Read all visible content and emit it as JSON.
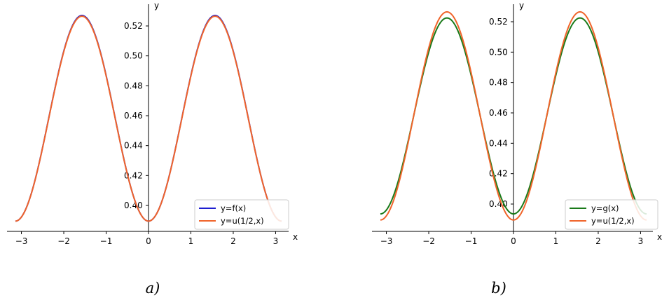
{
  "chart_data": [
    {
      "type": "line",
      "caption": "a)",
      "xlabel": "x",
      "ylabel": "y",
      "xlim": [
        -3.1416,
        3.1416
      ],
      "ylim": [
        0.389,
        0.527
      ],
      "xticks": [
        "−3",
        "−2",
        "−1",
        "0",
        "1",
        "2",
        "3"
      ],
      "yticks": [
        "0.40",
        "0.42",
        "0.44",
        "0.46",
        "0.48",
        "0.50",
        "0.52"
      ],
      "grid": false,
      "legend_position": "lower-right",
      "series": [
        {
          "name": "y=f(x)",
          "color": "#1f1fd0",
          "x": [
            -3.1416,
            -2.618,
            -2.0944,
            -1.5708,
            -1.0472,
            -0.5236,
            0,
            0.5236,
            1.0472,
            1.5708,
            2.0944,
            2.618,
            3.1416
          ],
          "values": [
            0.3895,
            0.424,
            0.4925,
            0.527,
            0.4925,
            0.424,
            0.3895,
            0.424,
            0.4925,
            0.527,
            0.4925,
            0.424,
            0.3895
          ]
        },
        {
          "name": "y=u(1/2,x)",
          "color": "#f0642a",
          "x": [
            -3.1416,
            -2.618,
            -2.0944,
            -1.5708,
            -1.0472,
            -0.5236,
            0,
            0.5236,
            1.0472,
            1.5708,
            2.0944,
            2.618,
            3.1416
          ],
          "values": [
            0.3895,
            0.4235,
            0.4915,
            0.5265,
            0.4915,
            0.4235,
            0.3895,
            0.4235,
            0.4915,
            0.5265,
            0.4915,
            0.4235,
            0.3895
          ]
        }
      ]
    },
    {
      "type": "line",
      "caption": "b)",
      "xlabel": "x",
      "ylabel": "y",
      "xlim": [
        -3.1416,
        3.1416
      ],
      "ylim": [
        0.389,
        0.527
      ],
      "xticks": [
        "−3",
        "−2",
        "−1",
        "0",
        "1",
        "2",
        "3"
      ],
      "yticks": [
        "0.40",
        "0.42",
        "0.44",
        "0.46",
        "0.48",
        "0.50",
        "0.52"
      ],
      "grid": false,
      "legend_position": "lower-right",
      "series": [
        {
          "name": "y=g(x)",
          "color": "#1a7a1a",
          "x": [
            -3.1416,
            -2.618,
            -2.0944,
            -1.5708,
            -1.0472,
            -0.5236,
            0,
            0.5236,
            1.0472,
            1.5708,
            2.0944,
            2.618,
            3.1416
          ],
          "values": [
            0.3935,
            0.4255,
            0.4905,
            0.5225,
            0.4905,
            0.4255,
            0.3935,
            0.4255,
            0.4905,
            0.5225,
            0.4905,
            0.4255,
            0.3935
          ]
        },
        {
          "name": "y=u(1/2,x)",
          "color": "#f0642a",
          "x": [
            -3.1416,
            -2.618,
            -2.0944,
            -1.5708,
            -1.0472,
            -0.5236,
            0,
            0.5236,
            1.0472,
            1.5708,
            2.0944,
            2.618,
            3.1416
          ],
          "values": [
            0.3895,
            0.4235,
            0.4915,
            0.5265,
            0.4915,
            0.4235,
            0.3895,
            0.4235,
            0.4915,
            0.5265,
            0.4915,
            0.4235,
            0.3895
          ]
        }
      ]
    }
  ]
}
